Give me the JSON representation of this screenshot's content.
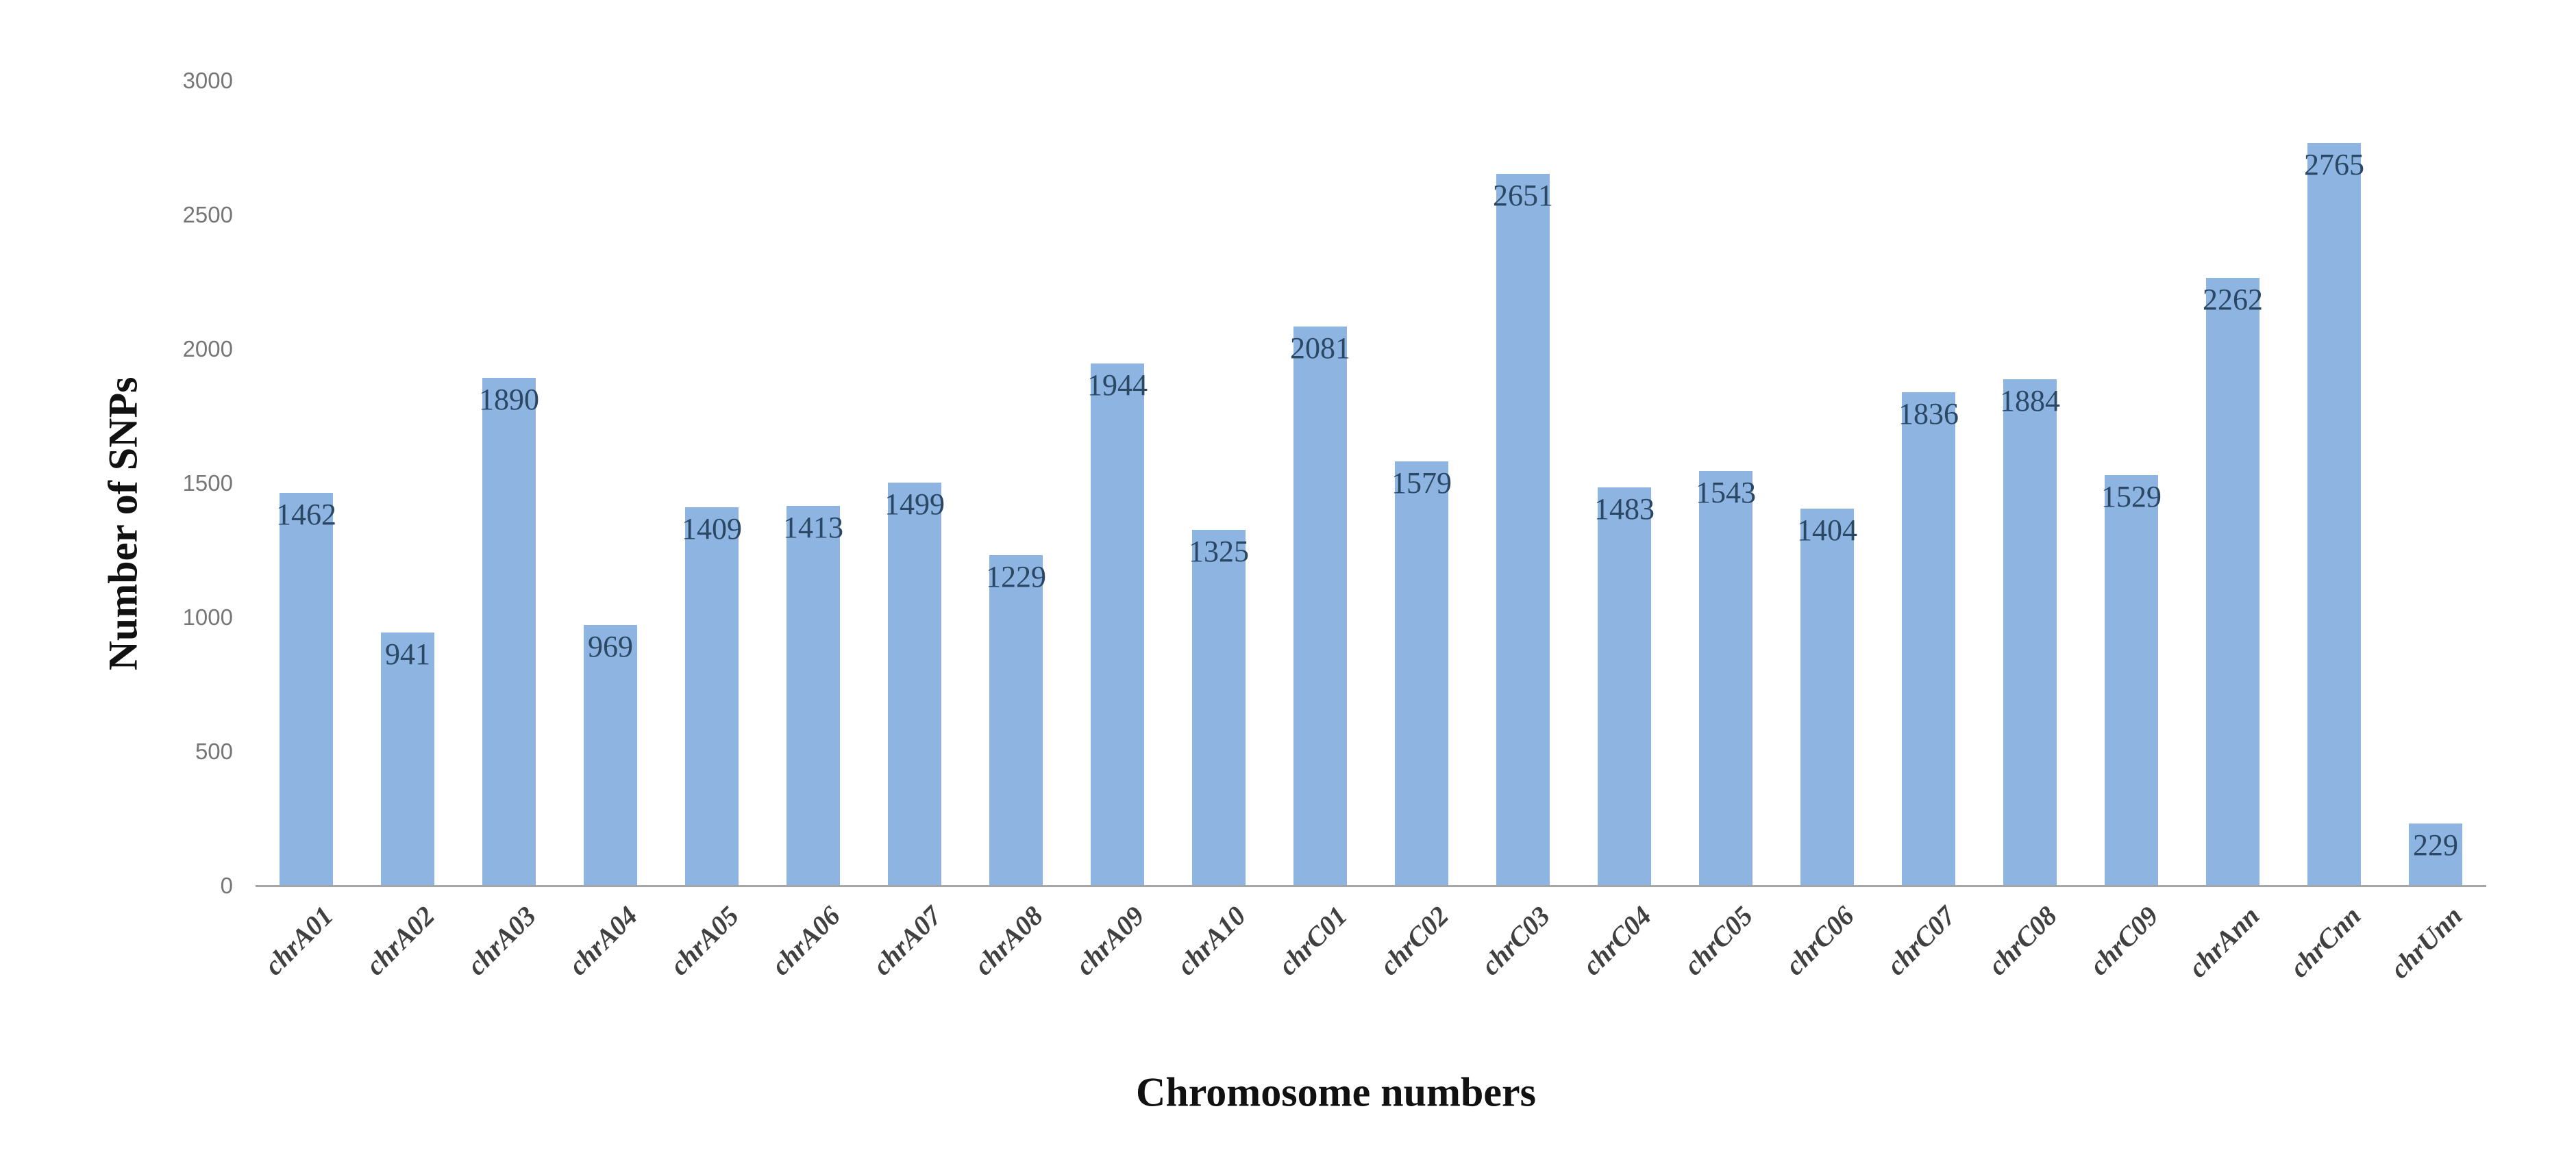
{
  "chart_data": {
    "type": "bar",
    "title": "",
    "xlabel": "Chromosome numbers",
    "ylabel": "Number of SNPs",
    "categories": [
      "chrA01",
      "chrA02",
      "chrA03",
      "chrA04",
      "chrA05",
      "chrA06",
      "chrA07",
      "chrA08",
      "chrA09",
      "chrA10",
      "chrC01",
      "chrC02",
      "chrC03",
      "chrC04",
      "chrC05",
      "chrC06",
      "chrC07",
      "chrC08",
      "chrC09",
      "chrAnn",
      "chrCnn",
      "chrUnn"
    ],
    "values": [
      1462,
      941,
      1890,
      969,
      1409,
      1413,
      1499,
      1229,
      1944,
      1325,
      2081,
      1579,
      2651,
      1483,
      1543,
      1404,
      1836,
      1884,
      1529,
      2262,
      2765,
      229
    ],
    "ylim": [
      0,
      3000
    ],
    "yticks": [
      0,
      500,
      1000,
      1500,
      2000,
      2500,
      3000
    ],
    "grid": false,
    "legend_position": "none",
    "data_labels": "inside-end",
    "colors": {
      "bar_fill": "#8eb4e2",
      "data_label": "#2a4763",
      "tick_label": "#767676",
      "category_label": "#404040",
      "axis_line": "#a6a6a6",
      "axis_title": "#111111",
      "background": "#ffffff"
    }
  }
}
